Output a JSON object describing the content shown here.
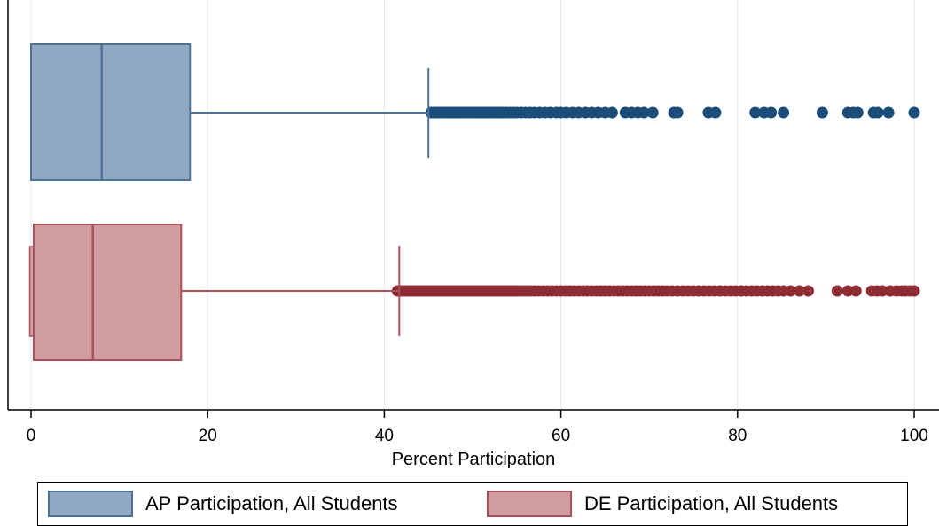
{
  "chart_data": {
    "type": "box",
    "orientation": "horizontal",
    "xlabel": "Percent Participation",
    "xlim": [
      0,
      100
    ],
    "xticks": [
      0,
      20,
      40,
      60,
      80,
      100
    ],
    "grid": true,
    "legend_position": "bottom",
    "series": [
      {
        "name": "AP Participation, All Students",
        "fill": "#90a8c2",
        "stroke": "#4f7396",
        "outlier_color": "#1b4d7a",
        "whisker_low": 0,
        "q1": 0,
        "median": 8,
        "q3": 18,
        "whisker_high": 45,
        "outliers": [
          45.3,
          45.6,
          45.9,
          46.2,
          46.5,
          46.8,
          47.1,
          47.4,
          47.7,
          48.0,
          48.3,
          48.6,
          48.9,
          49.2,
          49.5,
          49.8,
          50.1,
          50.4,
          50.7,
          51.0,
          51.3,
          51.6,
          51.9,
          52.2,
          52.5,
          52.8,
          53.1,
          53.4,
          53.8,
          54.2,
          54.6,
          55.0,
          55.5,
          56.0,
          56.5,
          57.0,
          57.6,
          58.2,
          58.8,
          59.5,
          60.0,
          60.6,
          61.3,
          62.0,
          62.8,
          63.5,
          64.2,
          65.0,
          65.8,
          67.3,
          68.0,
          68.7,
          69.4,
          70.4,
          72.8,
          73.2,
          76.7,
          77.5,
          82.0,
          83.0,
          83.8,
          85.2,
          89.6,
          92.5,
          93.1,
          93.6,
          95.4,
          95.9,
          97.1,
          100.0
        ]
      },
      {
        "name": "DE Participation, All Students",
        "fill": "#cf9da0",
        "stroke": "#aa5158",
        "outlier_color": "#8e2c33",
        "whisker_low": 0,
        "q1": 0.3,
        "median": 7,
        "q3": 17,
        "whisker_high": 41.7,
        "outliers": [
          41.5,
          41.8,
          42.1,
          42.4,
          42.7,
          43.0,
          43.3,
          43.6,
          43.9,
          44.2,
          44.5,
          44.8,
          45.1,
          45.4,
          45.7,
          46.0,
          46.3,
          46.6,
          46.9,
          47.2,
          47.5,
          47.8,
          48.1,
          48.4,
          48.7,
          49.0,
          49.3,
          49.6,
          49.9,
          50.2,
          50.5,
          50.8,
          51.1,
          51.4,
          51.7,
          52.0,
          52.3,
          52.6,
          52.9,
          53.2,
          53.5,
          53.8,
          54.1,
          54.4,
          54.7,
          55.0,
          55.4,
          55.8,
          56.2,
          56.6,
          57.0,
          57.5,
          58.0,
          58.5,
          59.0,
          59.5,
          60.0,
          60.5,
          61.0,
          61.5,
          62.0,
          62.5,
          63.0,
          63.5,
          64.0,
          64.5,
          65.0,
          65.5,
          66.0,
          66.5,
          67.0,
          67.5,
          68.0,
          68.5,
          69.0,
          69.5,
          70.0,
          70.5,
          71.0,
          71.5,
          72.0,
          72.6,
          73.2,
          73.8,
          74.4,
          75.0,
          75.6,
          76.2,
          76.8,
          77.4,
          78.0,
          78.6,
          79.2,
          79.8,
          80.4,
          81.0,
          81.6,
          82.2,
          82.8,
          83.4,
          84.0,
          84.6,
          85.2,
          86.0,
          87.0,
          88.0,
          91.3,
          92.5,
          93.4,
          95.2,
          95.8,
          96.4,
          97.3,
          98.0,
          98.6,
          99.0,
          99.5,
          100.0
        ]
      }
    ]
  }
}
